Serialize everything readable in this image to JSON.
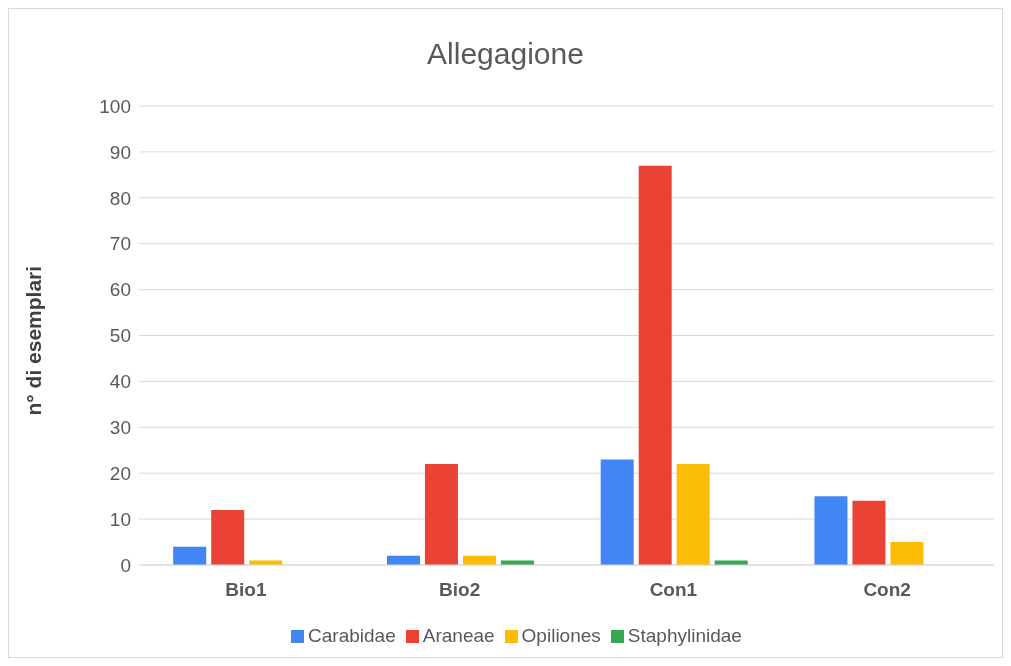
{
  "chart_data": {
    "type": "bar",
    "title": "Allegagione",
    "ylabel": "n° di esemplari",
    "categories": [
      "Bio1",
      "Bio2",
      "Con1",
      "Con2"
    ],
    "series": [
      {
        "name": "Carabidae",
        "color": "#4285f4",
        "values": [
          4,
          2,
          23,
          15
        ]
      },
      {
        "name": "Araneae",
        "color": "#ea4335",
        "values": [
          12,
          22,
          87,
          14
        ]
      },
      {
        "name": "Opiliones",
        "color": "#fbbc04",
        "values": [
          1,
          2,
          22,
          5
        ]
      },
      {
        "name": "Staphylinidae",
        "color": "#34a853",
        "values": [
          0,
          1,
          1,
          0
        ]
      }
    ],
    "ylim": [
      0,
      100
    ],
    "yticks": [
      0,
      10,
      20,
      30,
      40,
      50,
      60,
      70,
      80,
      90,
      100
    ],
    "grid": "y",
    "legend": "bottom"
  }
}
